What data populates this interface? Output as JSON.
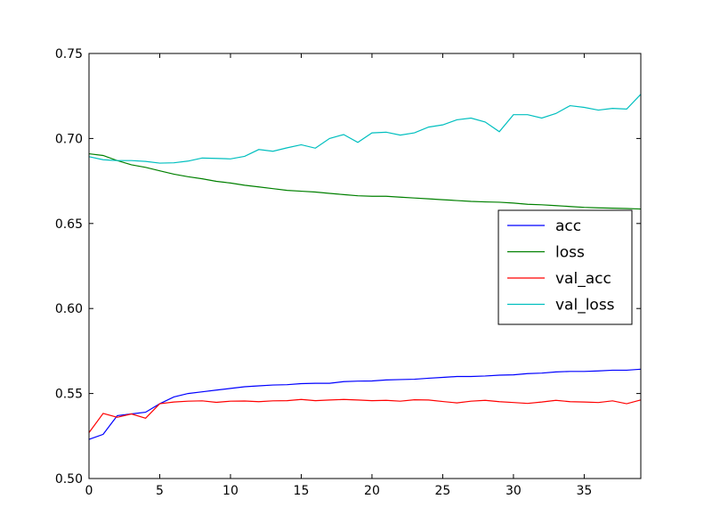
{
  "chart_data": {
    "type": "line",
    "xlim": [
      0,
      39
    ],
    "ylim": [
      0.5,
      0.75
    ],
    "xticks": [
      0,
      5,
      10,
      15,
      20,
      25,
      30,
      35
    ],
    "xtick_labels": [
      "0",
      "5",
      "10",
      "15",
      "20",
      "25",
      "30",
      "35"
    ],
    "yticks": [
      0.5,
      0.55,
      0.6,
      0.65,
      0.7,
      0.75
    ],
    "ytick_labels": [
      "0.50",
      "0.55",
      "0.60",
      "0.65",
      "0.70",
      "0.75"
    ],
    "grid": false,
    "legend_position": "center-right",
    "x": [
      0,
      1,
      2,
      3,
      4,
      5,
      6,
      7,
      8,
      9,
      10,
      11,
      12,
      13,
      14,
      15,
      16,
      17,
      18,
      19,
      20,
      21,
      22,
      23,
      24,
      25,
      26,
      27,
      28,
      29,
      30,
      31,
      32,
      33,
      34,
      35,
      36,
      37,
      38,
      39
    ],
    "series": [
      {
        "name": "acc",
        "color": "#0000ff",
        "values": [
          0.523,
          0.526,
          0.537,
          0.538,
          0.539,
          0.544,
          0.548,
          0.55,
          0.551,
          0.552,
          0.553,
          0.554,
          0.5545,
          0.555,
          0.5552,
          0.5558,
          0.556,
          0.556,
          0.557,
          0.5573,
          0.5574,
          0.558,
          0.5582,
          0.5584,
          0.559,
          0.5595,
          0.56,
          0.56,
          0.5603,
          0.5608,
          0.561,
          0.5617,
          0.562,
          0.5627,
          0.563,
          0.563,
          0.5633,
          0.5637,
          0.5637,
          0.5643
        ]
      },
      {
        "name": "loss",
        "color": "#008000",
        "values": [
          0.691,
          0.69,
          0.687,
          0.6845,
          0.683,
          0.681,
          0.679,
          0.6775,
          0.6763,
          0.6748,
          0.6738,
          0.6725,
          0.6715,
          0.6705,
          0.6695,
          0.669,
          0.6685,
          0.6677,
          0.667,
          0.6663,
          0.666,
          0.666,
          0.6655,
          0.665,
          0.6645,
          0.664,
          0.6635,
          0.663,
          0.6627,
          0.6625,
          0.662,
          0.6613,
          0.661,
          0.6605,
          0.66,
          0.6595,
          0.6592,
          0.659,
          0.6588,
          0.6585
        ]
      },
      {
        "name": "val_acc",
        "color": "#ff0000",
        "values": [
          0.527,
          0.5383,
          0.536,
          0.538,
          0.5355,
          0.544,
          0.545,
          0.5455,
          0.5457,
          0.5448,
          0.5455,
          0.5456,
          0.5452,
          0.5457,
          0.5458,
          0.5465,
          0.5458,
          0.5462,
          0.5465,
          0.5462,
          0.5458,
          0.546,
          0.5455,
          0.5463,
          0.5462,
          0.5453,
          0.5445,
          0.5455,
          0.546,
          0.5452,
          0.5447,
          0.5442,
          0.545,
          0.546,
          0.5452,
          0.545,
          0.5447,
          0.5457,
          0.544,
          0.5462
        ]
      },
      {
        "name": "val_loss",
        "color": "#00bfbf",
        "values": [
          0.6893,
          0.6875,
          0.687,
          0.687,
          0.6865,
          0.6855,
          0.6857,
          0.6867,
          0.6885,
          0.6883,
          0.688,
          0.6895,
          0.6935,
          0.6925,
          0.6945,
          0.6963,
          0.6943,
          0.7,
          0.7023,
          0.6977,
          0.7033,
          0.7037,
          0.702,
          0.7033,
          0.7067,
          0.708,
          0.711,
          0.712,
          0.7097,
          0.704,
          0.714,
          0.714,
          0.712,
          0.7147,
          0.7193,
          0.7183,
          0.7167,
          0.7177,
          0.7173,
          0.726
        ]
      }
    ]
  }
}
